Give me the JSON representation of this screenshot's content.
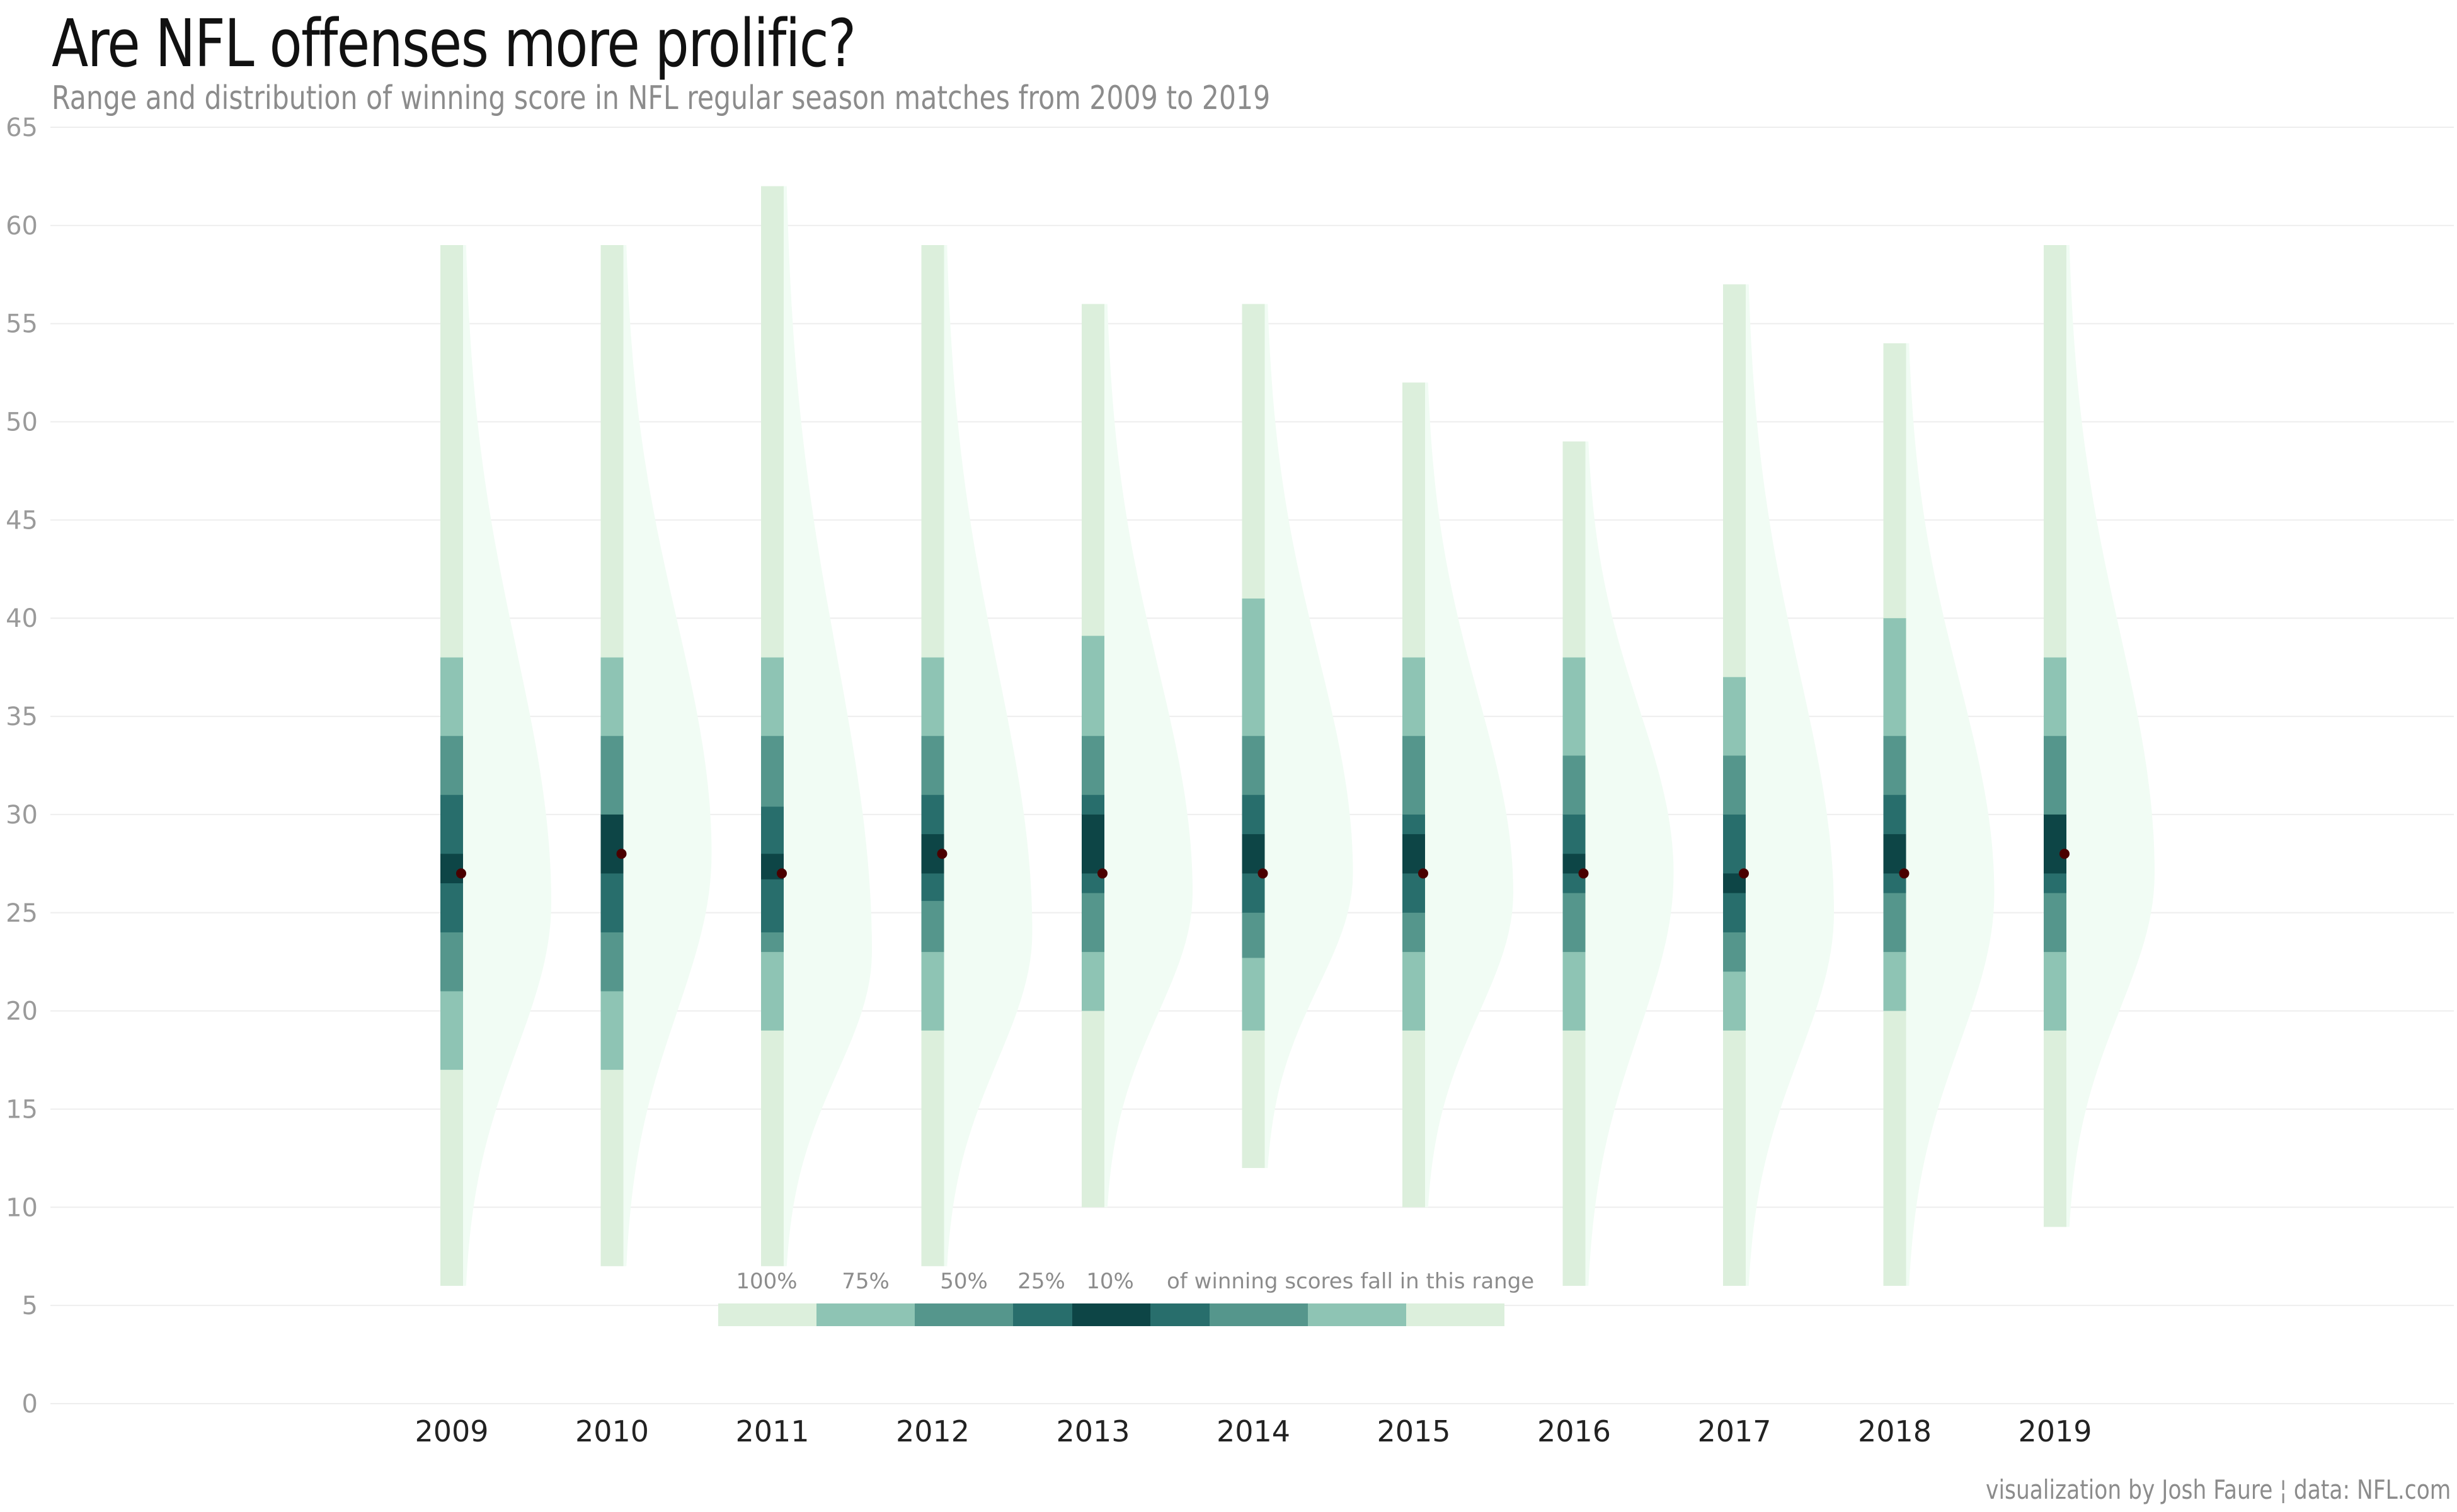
{
  "title": "Are NFL offenses more prolific?",
  "subtitle": "Range and distribution of winning score in NFL regular season matches from 2009 to 2019",
  "caption": "visualization by Josh Faure ¦ data: NFL.com",
  "colors": {
    "range_100": "#dcefdc",
    "range_75": "#8ec4b4",
    "range_50": "#55968c",
    "range_25": "#286e6c",
    "range_10": "#0d4546",
    "median_dot": "#4a0000",
    "density": "#f1fcf4",
    "grid": "#eeeeee"
  },
  "legend": {
    "levels": [
      "100%",
      "75%",
      "50%",
      "25%",
      "10%"
    ],
    "suffix": "of winning scores fall in this range"
  },
  "chart_data": {
    "type": "interval-density",
    "xlabel": "",
    "ylabel": "",
    "ylim": [
      0,
      65
    ],
    "yticks": [
      0,
      5,
      10,
      15,
      20,
      25,
      30,
      35,
      40,
      45,
      50,
      55,
      60,
      65
    ],
    "grid": "horizontal",
    "series": [
      {
        "year": "2009",
        "median": 27,
        "r100": [
          6,
          59
        ],
        "r75": [
          17,
          38
        ],
        "r50": [
          21,
          34
        ],
        "r25": [
          24,
          31
        ],
        "r10": [
          26.5,
          28
        ],
        "density_peak": 25.5
      },
      {
        "year": "2010",
        "median": 28,
        "r100": [
          7,
          59
        ],
        "r75": [
          17,
          38
        ],
        "r50": [
          21,
          34
        ],
        "r25": [
          24,
          30
        ],
        "r10": [
          27,
          30
        ],
        "density_peak": 28
      },
      {
        "year": "2011",
        "median": 27,
        "r100": [
          7,
          62
        ],
        "r75": [
          19,
          38
        ],
        "r50": [
          23,
          34
        ],
        "r25": [
          24,
          30.4
        ],
        "r10": [
          26.7,
          28
        ],
        "density_peak": 23
      },
      {
        "year": "2012",
        "median": 28,
        "r100": [
          7,
          59
        ],
        "r75": [
          19,
          38
        ],
        "r50": [
          23,
          34
        ],
        "r25": [
          25.6,
          31
        ],
        "r10": [
          27,
          29
        ],
        "density_peak": 24
      },
      {
        "year": "2013",
        "median": 27,
        "r100": [
          10,
          56
        ],
        "r75": [
          20,
          39.1
        ],
        "r50": [
          23,
          34
        ],
        "r25": [
          26,
          31
        ],
        "r10": [
          27,
          30
        ],
        "density_peak": 26
      },
      {
        "year": "2014",
        "median": 27,
        "r100": [
          12,
          56
        ],
        "r75": [
          19,
          41
        ],
        "r50": [
          22.7,
          34
        ],
        "r25": [
          25,
          31
        ],
        "r10": [
          27,
          29
        ],
        "density_peak": 27
      },
      {
        "year": "2015",
        "median": 27,
        "r100": [
          10,
          52
        ],
        "r75": [
          19,
          38
        ],
        "r50": [
          23,
          34
        ],
        "r25": [
          25,
          30
        ],
        "r10": [
          27,
          29
        ],
        "density_peak": 26
      },
      {
        "year": "2016",
        "median": 27,
        "r100": [
          6,
          49
        ],
        "r75": [
          19,
          38
        ],
        "r50": [
          23,
          33
        ],
        "r25": [
          26,
          30
        ],
        "r10": [
          27,
          28
        ],
        "density_peak": 27
      },
      {
        "year": "2017",
        "median": 27,
        "r100": [
          6,
          57
        ],
        "r75": [
          19,
          37
        ],
        "r50": [
          22,
          33
        ],
        "r25": [
          24,
          30
        ],
        "r10": [
          26,
          27
        ],
        "density_peak": 25
      },
      {
        "year": "2018",
        "median": 27,
        "r100": [
          6,
          54
        ],
        "r75": [
          20,
          40
        ],
        "r50": [
          23,
          34
        ],
        "r25": [
          26,
          31
        ],
        "r10": [
          27,
          29
        ],
        "density_peak": 26
      },
      {
        "year": "2019",
        "median": 28,
        "r100": [
          9,
          59
        ],
        "r75": [
          19,
          38
        ],
        "r50": [
          23,
          34
        ],
        "r25": [
          26,
          30
        ],
        "r10": [
          27,
          30
        ],
        "density_peak": 27
      }
    ]
  }
}
